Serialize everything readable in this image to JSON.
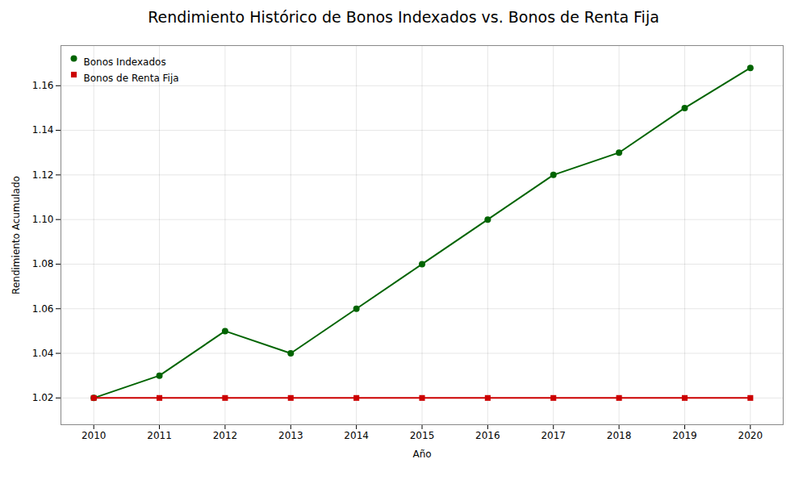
{
  "chart_data": {
    "type": "line",
    "title": "Rendimiento Histórico de Bonos Indexados vs. Bonos de Renta Fija",
    "xlabel": "Año",
    "ylabel": "Rendimiento Acumulado",
    "x": [
      2010,
      2011,
      2012,
      2013,
      2014,
      2015,
      2016,
      2017,
      2018,
      2019,
      2020
    ],
    "series": [
      {
        "name": "Bonos Indexados",
        "color": "#006400",
        "marker": "circle",
        "values": [
          1.02,
          1.03,
          1.05,
          1.04,
          1.06,
          1.08,
          1.1,
          1.12,
          1.13,
          1.15,
          1.168
        ]
      },
      {
        "name": "Bonos de Renta Fija",
        "color": "#cc0000",
        "marker": "square",
        "values": [
          1.02,
          1.02,
          1.02,
          1.02,
          1.02,
          1.02,
          1.02,
          1.02,
          1.02,
          1.02,
          1.02
        ]
      }
    ],
    "xlim": [
      2009.5,
      2020.5
    ],
    "xticks": [
      2010,
      2011,
      2012,
      2013,
      2014,
      2015,
      2016,
      2017,
      2018,
      2019,
      2020
    ],
    "ylim": [
      1.008,
      1.178
    ],
    "yticks": [
      1.02,
      1.04,
      1.06,
      1.08,
      {
        "value": 1.1,
        "label": "1.10"
      },
      1.12,
      1.14,
      1.16
    ],
    "grid": true,
    "legend": "upper left"
  }
}
